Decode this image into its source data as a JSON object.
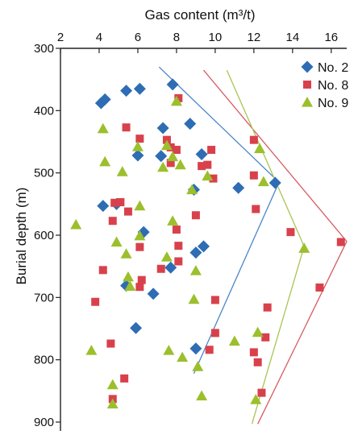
{
  "chart_data": {
    "type": "scatter",
    "title": "",
    "xlabel": "Gas content (m³/t)",
    "ylabel": "Burial depth (m)",
    "x_axis_position": "top",
    "y_axis_inverted": true,
    "xlim": [
      2,
      16.8
    ],
    "ylim": [
      300,
      900
    ],
    "xticks": [
      2,
      4,
      6,
      8,
      10,
      12,
      14,
      16
    ],
    "yticks": [
      300,
      400,
      500,
      600,
      700,
      800,
      900
    ],
    "grid": false,
    "legend": "top-right",
    "series": [
      {
        "name": "No. 2",
        "marker": "diamond",
        "color": "#2e6db4",
        "points": [
          [
            4.1,
            388
          ],
          [
            4.3,
            382
          ],
          [
            5.4,
            368
          ],
          [
            6.1,
            365
          ],
          [
            7.8,
            358
          ],
          [
            7.3,
            428
          ],
          [
            8.7,
            421
          ],
          [
            7.2,
            473
          ],
          [
            6.0,
            472
          ],
          [
            9.3,
            470
          ],
          [
            8.9,
            527
          ],
          [
            11.2,
            524
          ],
          [
            13.1,
            516
          ],
          [
            4.2,
            553
          ],
          [
            4.9,
            550
          ],
          [
            6.3,
            595
          ],
          [
            9.4,
            618
          ],
          [
            9.0,
            628
          ],
          [
            7.7,
            652
          ],
          [
            5.4,
            681
          ],
          [
            6.8,
            694
          ],
          [
            5.9,
            749
          ],
          [
            9.0,
            782
          ]
        ]
      },
      {
        "name": "No. 8",
        "marker": "square",
        "color": "#d8414c",
        "points": [
          [
            8.1,
            380
          ],
          [
            5.4,
            427
          ],
          [
            6.1,
            445
          ],
          [
            7.5,
            447
          ],
          [
            7.7,
            459
          ],
          [
            8.0,
            463
          ],
          [
            7.7,
            484
          ],
          [
            9.3,
            489
          ],
          [
            9.8,
            463
          ],
          [
            9.6,
            487
          ],
          [
            12.0,
            447
          ],
          [
            12.0,
            504
          ],
          [
            9.9,
            509
          ],
          [
            4.8,
            548
          ],
          [
            5.1,
            547
          ],
          [
            5.5,
            562
          ],
          [
            4.7,
            577
          ],
          [
            12.1,
            558
          ],
          [
            8.0,
            591
          ],
          [
            9.0,
            568
          ],
          [
            13.9,
            595
          ],
          [
            16.5,
            611
          ],
          [
            6.1,
            619
          ],
          [
            8.1,
            617
          ],
          [
            4.2,
            656
          ],
          [
            7.2,
            654
          ],
          [
            6.2,
            672
          ],
          [
            8.1,
            642
          ],
          [
            6.1,
            683
          ],
          [
            3.8,
            707
          ],
          [
            10.0,
            704
          ],
          [
            12.7,
            716
          ],
          [
            15.4,
            684
          ],
          [
            9.7,
            784
          ],
          [
            10.0,
            757
          ],
          [
            12.0,
            788
          ],
          [
            12.6,
            764
          ],
          [
            12.2,
            804
          ],
          [
            4.6,
            774
          ],
          [
            5.3,
            830
          ],
          [
            12.4,
            853
          ],
          [
            4.7,
            863
          ]
        ]
      },
      {
        "name": "No. 9",
        "marker": "triangle",
        "color": "#9cbf2c",
        "points": [
          [
            8.0,
            385
          ],
          [
            4.2,
            429
          ],
          [
            12.3,
            461
          ],
          [
            7.5,
            456
          ],
          [
            7.8,
            474
          ],
          [
            4.3,
            482
          ],
          [
            5.2,
            498
          ],
          [
            7.3,
            491
          ],
          [
            8.2,
            487
          ],
          [
            9.6,
            505
          ],
          [
            12.5,
            514
          ],
          [
            8.8,
            527
          ],
          [
            6.0,
            458
          ],
          [
            6.1,
            553
          ],
          [
            2.8,
            583
          ],
          [
            7.8,
            577
          ],
          [
            4.9,
            611
          ],
          [
            6.1,
            601
          ],
          [
            5.4,
            630
          ],
          [
            7.5,
            635
          ],
          [
            9.0,
            657
          ],
          [
            5.5,
            667
          ],
          [
            5.6,
            682
          ],
          [
            8.9,
            703
          ],
          [
            14.6,
            621
          ],
          [
            12.2,
            756
          ],
          [
            11.0,
            770
          ],
          [
            7.6,
            785
          ],
          [
            8.3,
            796
          ],
          [
            3.6,
            785
          ],
          [
            4.7,
            840
          ],
          [
            9.1,
            811
          ],
          [
            12.1,
            864
          ],
          [
            9.3,
            858
          ],
          [
            4.7,
            871
          ]
        ]
      }
    ],
    "trend_lines": [
      {
        "series": "No. 2",
        "color": "#4a86c8",
        "points": [
          [
            7.1,
            330
          ],
          [
            13.3,
            515
          ],
          [
            8.9,
            822
          ]
        ]
      },
      {
        "series": "No. 8",
        "color": "#d65a60",
        "points": [
          [
            9.4,
            335
          ],
          [
            16.8,
            610
          ],
          [
            12.2,
            903
          ]
        ]
      },
      {
        "series": "No. 9",
        "color": "#a8c454",
        "points": [
          [
            10.6,
            335
          ],
          [
            14.6,
            618
          ],
          [
            11.9,
            903
          ]
        ]
      }
    ]
  }
}
